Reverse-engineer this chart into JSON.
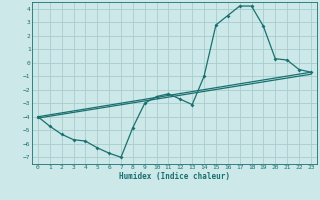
{
  "xlabel": "Humidex (Indice chaleur)",
  "bg_color": "#cce8e8",
  "grid_color": "#aacccc",
  "line_color": "#1a7070",
  "xlim": [
    -0.5,
    23.5
  ],
  "ylim": [
    -7.5,
    4.5
  ],
  "xticks": [
    0,
    1,
    2,
    3,
    4,
    5,
    6,
    7,
    8,
    9,
    10,
    11,
    12,
    13,
    14,
    15,
    16,
    17,
    18,
    19,
    20,
    21,
    22,
    23
  ],
  "yticks": [
    -7,
    -6,
    -5,
    -4,
    -3,
    -2,
    -1,
    0,
    1,
    2,
    3,
    4
  ],
  "series1_x": [
    0,
    1,
    2,
    3,
    4,
    5,
    6,
    7,
    8,
    9,
    10,
    11,
    12,
    13,
    14,
    15,
    16,
    17,
    18,
    19,
    20,
    21,
    22,
    23
  ],
  "series1_y": [
    -4.0,
    -4.7,
    -5.3,
    -5.7,
    -5.8,
    -6.3,
    -6.7,
    -7.0,
    -4.8,
    -3.0,
    -2.5,
    -2.3,
    -2.7,
    -3.1,
    -1.0,
    2.8,
    3.5,
    4.2,
    4.2,
    2.7,
    0.3,
    0.2,
    -0.5,
    -0.7
  ],
  "series2_x": [
    0,
    23
  ],
  "series2_y": [
    -4.0,
    -0.7
  ],
  "series3_x": [
    0,
    23
  ],
  "series3_y": [
    -4.0,
    -0.7
  ],
  "line2_x": [
    0,
    23
  ],
  "line2_y": [
    -4.2,
    -0.5
  ],
  "line3_x": [
    0,
    23
  ],
  "line3_y": [
    -3.8,
    -0.9
  ]
}
